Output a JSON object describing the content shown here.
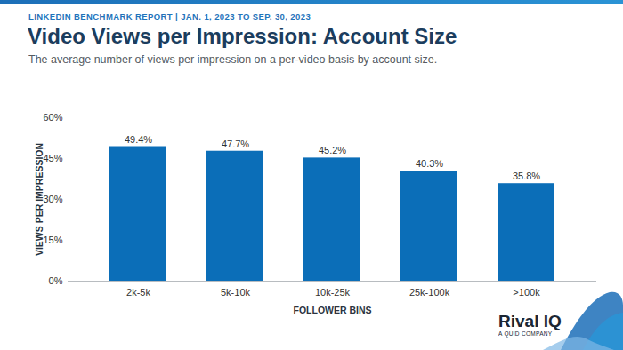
{
  "chart_data": {
    "type": "bar",
    "header": "LINKEDIN BENCHMARK REPORT | JAN. 1, 2023 TO SEP. 30, 2023",
    "title": "Video Views per Impression: Account Size",
    "subtitle": "The average number of views per impression on a per-video basis by account size.",
    "xlabel": "FOLLOWER BINS",
    "ylabel": "VIEWS PER IMPRESSION",
    "categories": [
      "2k-5k",
      "5k-10k",
      "10k-25k",
      "25k-100k",
      ">100k"
    ],
    "values": [
      49.4,
      47.7,
      45.2,
      40.3,
      35.8
    ],
    "value_labels": [
      "49.4%",
      "47.7%",
      "45.2%",
      "40.3%",
      "35.8%"
    ],
    "color": "#0b6eb8",
    "ylim": [
      0,
      60
    ],
    "yticks": [
      {
        "value": 0,
        "label": "0%"
      },
      {
        "value": 15,
        "label": "15%"
      },
      {
        "value": 30,
        "label": "30%"
      },
      {
        "value": 45,
        "label": "45%"
      },
      {
        "value": 60,
        "label": "60%"
      }
    ],
    "grid": false,
    "data_labels": true,
    "brand": "Rival IQ",
    "brand_tagline": "A QUID COMPANY"
  }
}
